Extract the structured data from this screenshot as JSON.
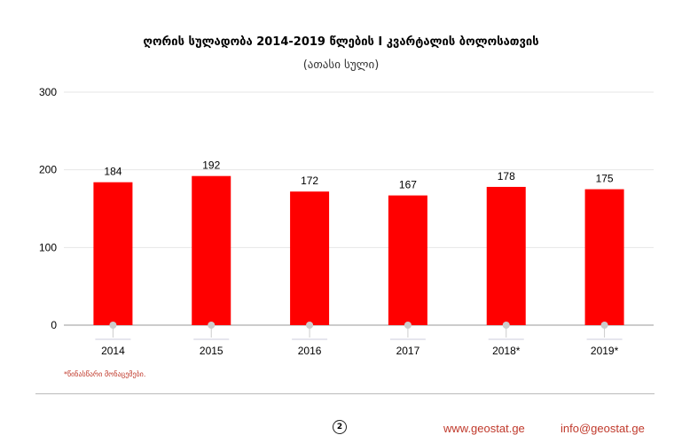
{
  "chart_data": {
    "type": "bar",
    "title": "ღორის სულადობა 2014-2019 წლების I კვარტალის ბოლოსათვის",
    "subtitle": "(ათასი სული)",
    "categories": [
      "2014",
      "2015",
      "2016",
      "2017",
      "2018*",
      "2019*"
    ],
    "values": [
      184,
      192,
      172,
      167,
      178,
      175
    ],
    "ylim": [
      0,
      300
    ],
    "yticks": [
      0,
      100,
      200,
      300
    ],
    "xlabel": "",
    "ylabel": "",
    "grid": true,
    "bar_color": "#ff0000"
  },
  "footnote": "*წინასწარი მონაცემები.",
  "footer": {
    "page": "2",
    "website": "www.geostat.ge",
    "email": "info@geostat.ge"
  }
}
